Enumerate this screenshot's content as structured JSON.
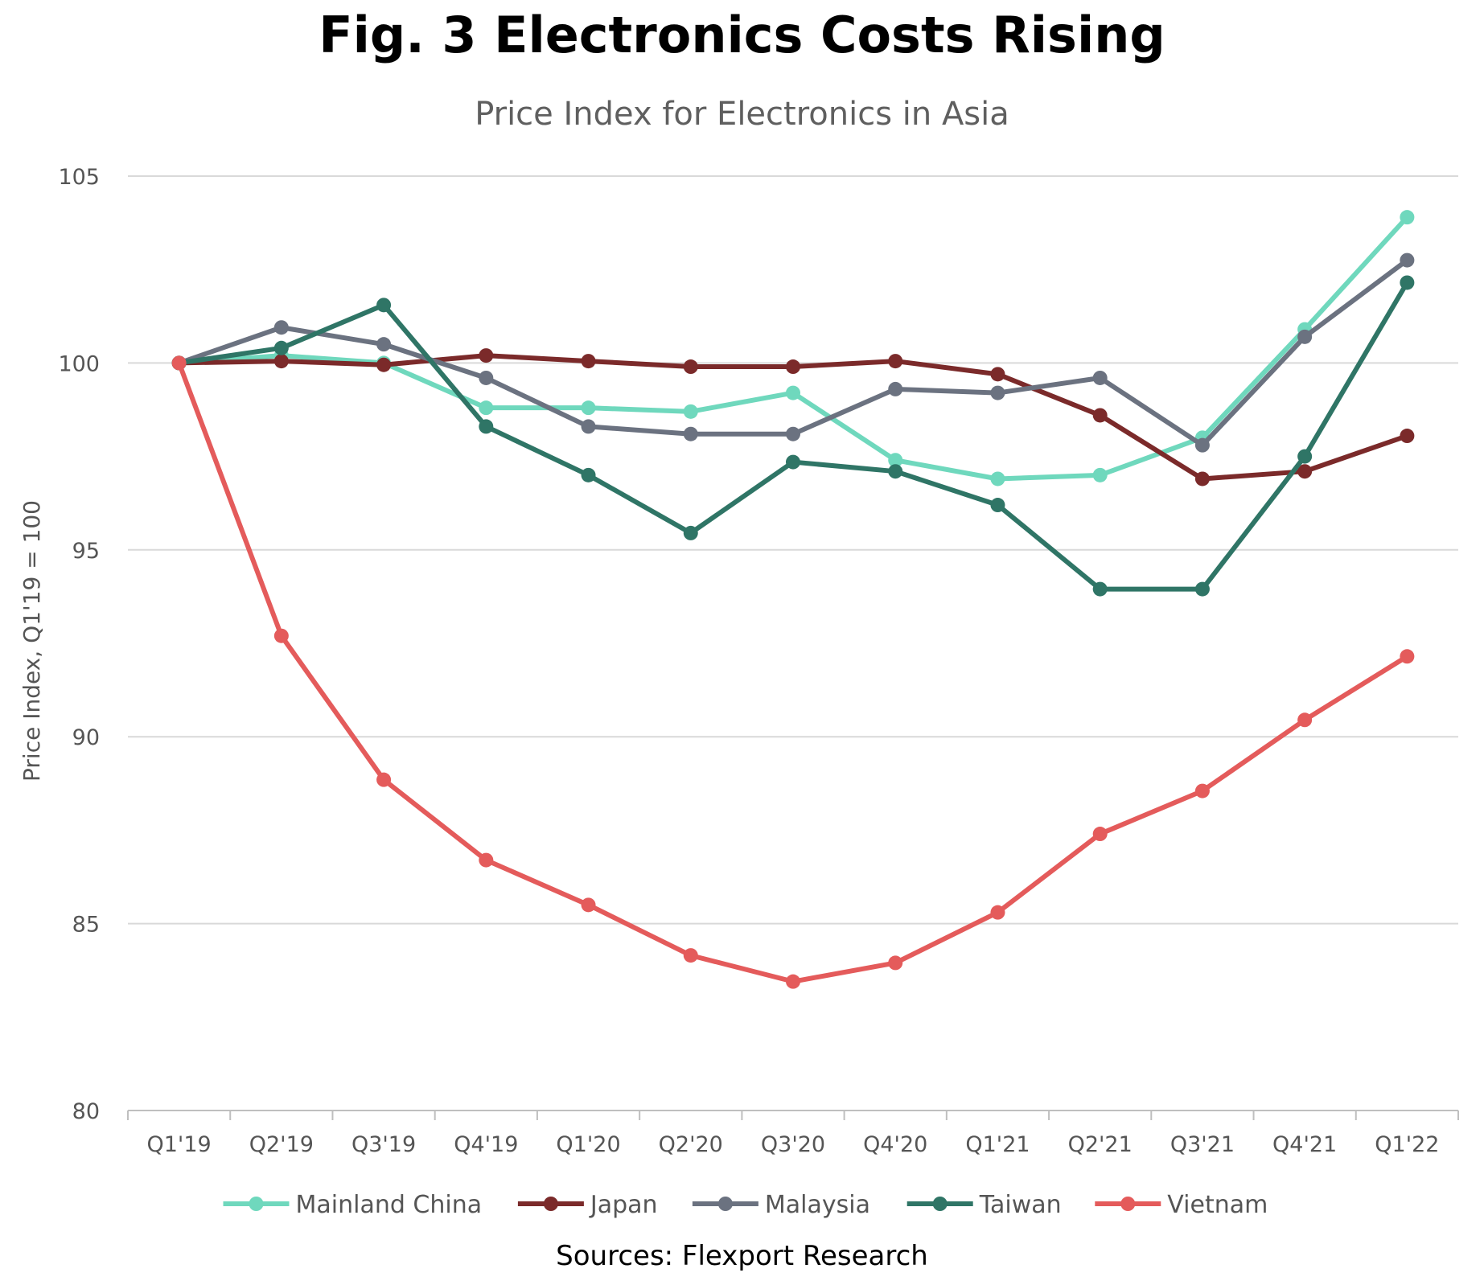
{
  "chart_data": {
    "type": "line",
    "title": "Fig. 3 Electronics Costs Rising",
    "subtitle": "Price Index for Electronics in Asia",
    "ylabel": "Price Index, Q1'19 = 100",
    "xlabel": "",
    "ylim": [
      80,
      105
    ],
    "yticks": [
      "80",
      "85",
      "90",
      "95",
      "100",
      "105"
    ],
    "categories": [
      "Q1'19",
      "Q2'19",
      "Q3'19",
      "Q4'19",
      "Q1'20",
      "Q2'20",
      "Q3'20",
      "Q4'20",
      "Q1'21",
      "Q2'21",
      "Q3'21",
      "Q4'21",
      "Q1'22"
    ],
    "grid": "horizontal",
    "legend": "bottom",
    "series": [
      {
        "name": "Mainland China",
        "color": "#6fd8bd",
        "values": [
          100,
          100.2,
          100.0,
          98.8,
          98.8,
          98.7,
          99.2,
          97.4,
          96.9,
          97.0,
          98.0,
          100.9,
          103.9
        ]
      },
      {
        "name": "Japan",
        "color": "#7b2a2a",
        "values": [
          100,
          100.05,
          99.95,
          100.2,
          100.05,
          99.9,
          99.9,
          100.05,
          99.7,
          98.6,
          96.9,
          97.1,
          98.05
        ]
      },
      {
        "name": "Malaysia",
        "color": "#6b7280",
        "values": [
          100,
          100.95,
          100.5,
          99.6,
          98.3,
          98.1,
          98.1,
          99.3,
          99.2,
          99.6,
          97.8,
          100.7,
          102.75
        ]
      },
      {
        "name": "Taiwan",
        "color": "#2f7566",
        "values": [
          100,
          100.4,
          101.55,
          98.3,
          97.0,
          95.45,
          97.35,
          97.1,
          96.2,
          93.95,
          93.95,
          97.5,
          102.15
        ]
      },
      {
        "name": "Vietnam",
        "color": "#e45b5b",
        "values": [
          100,
          92.7,
          88.85,
          86.7,
          85.5,
          84.15,
          83.45,
          83.95,
          85.3,
          87.4,
          88.55,
          90.45,
          92.15
        ]
      }
    ]
  },
  "footer": {
    "source": "Sources: Flexport Research"
  }
}
